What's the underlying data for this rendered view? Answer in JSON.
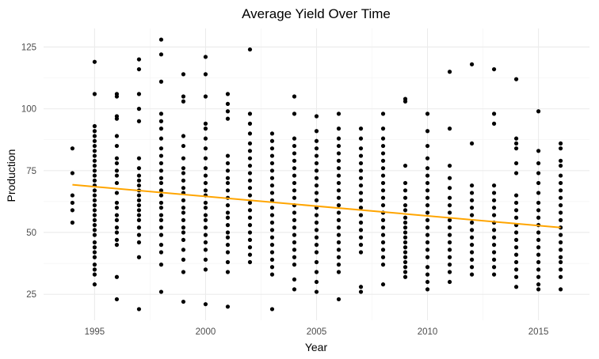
{
  "chart_data": {
    "type": "scatter",
    "title": "Average Yield Over Time",
    "xlabel": "Year",
    "ylabel": "Production",
    "xlim": [
      1992.7,
      2017.3
    ],
    "ylim": [
      14.5,
      132.5
    ],
    "x_ticks": [
      1995,
      2000,
      2005,
      2010,
      2015
    ],
    "y_ticks": [
      25,
      50,
      75,
      100,
      125
    ],
    "grid": true,
    "legend": "none",
    "colors": {
      "points": "#000000",
      "trend": "#FFA500",
      "grid": "#EBEBEB"
    },
    "trend_line": {
      "x": [
        1994,
        2016
      ],
      "y": [
        69.3,
        52.0
      ]
    },
    "series": [
      {
        "year": 1994,
        "values": [
          84,
          74,
          65,
          62,
          59,
          54
        ]
      },
      {
        "year": 1995,
        "values": [
          119,
          106,
          93,
          91,
          89,
          87,
          85,
          83,
          81,
          79,
          77,
          75,
          73,
          71,
          69,
          67,
          65,
          63,
          61,
          59,
          57,
          55,
          53,
          51,
          49,
          46,
          44,
          42,
          40,
          37,
          35,
          33,
          29
        ]
      },
      {
        "year": 1996,
        "values": [
          106,
          105,
          97,
          96,
          89,
          85,
          80,
          78,
          75,
          73,
          70,
          66,
          62,
          60,
          57,
          55,
          52,
          50,
          47,
          45,
          32,
          23
        ]
      },
      {
        "year": 1997,
        "values": [
          120,
          116,
          106,
          100,
          95,
          80,
          76,
          73,
          71,
          69,
          67,
          65,
          63,
          61,
          59,
          57,
          55,
          52,
          49,
          46,
          40,
          19
        ]
      },
      {
        "year": 1998,
        "values": [
          128,
          122,
          111,
          98,
          95,
          92,
          88,
          84,
          81,
          78,
          75,
          72,
          70,
          67,
          65,
          62,
          60,
          57,
          55,
          52,
          49,
          45,
          42,
          37,
          26
        ]
      },
      {
        "year": 1999,
        "values": [
          114,
          105,
          103,
          89,
          85,
          80,
          76,
          74,
          71,
          68,
          66,
          63,
          60,
          58,
          55,
          52,
          50,
          47,
          43,
          39,
          34,
          22
        ]
      },
      {
        "year": 2000,
        "values": [
          121,
          114,
          105,
          94,
          92,
          88,
          84,
          80,
          76,
          73,
          70,
          67,
          65,
          62,
          60,
          57,
          55,
          52,
          49,
          46,
          43,
          39,
          35,
          21
        ]
      },
      {
        "year": 2001,
        "values": [
          106,
          102,
          99,
          96,
          81,
          78,
          75,
          72,
          70,
          67,
          64,
          61,
          58,
          56,
          53,
          50,
          48,
          45,
          42,
          38,
          34,
          20
        ]
      },
      {
        "year": 2002,
        "values": [
          124,
          98,
          94,
          90,
          86,
          83,
          80,
          77,
          74,
          71,
          68,
          65,
          62,
          59,
          56,
          53,
          50,
          47,
          44,
          41,
          38
        ]
      },
      {
        "year": 2003,
        "values": [
          90,
          87,
          84,
          81,
          78,
          75,
          72,
          69,
          66,
          63,
          60,
          57,
          54,
          51,
          48,
          45,
          42,
          39,
          36,
          33,
          19
        ]
      },
      {
        "year": 2004,
        "values": [
          105,
          98,
          88,
          85,
          82,
          79,
          76,
          73,
          70,
          67,
          64,
          61,
          58,
          55,
          52,
          49,
          46,
          43,
          40,
          37,
          31,
          27
        ]
      },
      {
        "year": 2005,
        "values": [
          97,
          91,
          87,
          84,
          81,
          78,
          75,
          72,
          69,
          66,
          63,
          60,
          57,
          54,
          51,
          48,
          45,
          42,
          38,
          34,
          30,
          26
        ]
      },
      {
        "year": 2006,
        "values": [
          98,
          92,
          88,
          85,
          82,
          79,
          76,
          73,
          70,
          67,
          64,
          61,
          58,
          55,
          52,
          49,
          46,
          43,
          40,
          37,
          34,
          23
        ]
      },
      {
        "year": 2007,
        "values": [
          92,
          88,
          84,
          81,
          78,
          75,
          72,
          69,
          66,
          63,
          60,
          57,
          54,
          51,
          48,
          45,
          42,
          28,
          26
        ]
      },
      {
        "year": 2008,
        "values": [
          98,
          92,
          88,
          85,
          82,
          79,
          76,
          73,
          70,
          67,
          64,
          61,
          58,
          55,
          52,
          49,
          46,
          43,
          40,
          37,
          29
        ]
      },
      {
        "year": 2009,
        "values": [
          104,
          103,
          77,
          70,
          67,
          64,
          61,
          59,
          56,
          54,
          52,
          50,
          48,
          46,
          44,
          42,
          40,
          38,
          36,
          34,
          32
        ]
      },
      {
        "year": 2010,
        "values": [
          98,
          91,
          85,
          80,
          76,
          73,
          70,
          67,
          64,
          61,
          58,
          55,
          52,
          49,
          46,
          43,
          40,
          36,
          33,
          30,
          27
        ]
      },
      {
        "year": 2011,
        "values": [
          115,
          92,
          77,
          72,
          68,
          64,
          61,
          58,
          55,
          52,
          49,
          46,
          43,
          40,
          37,
          34,
          30
        ]
      },
      {
        "year": 2012,
        "values": [
          118,
          86,
          69,
          66,
          63,
          60,
          57,
          54,
          51,
          48,
          45,
          42,
          39,
          36,
          33
        ]
      },
      {
        "year": 2013,
        "values": [
          116,
          98,
          94,
          69,
          66,
          63,
          60,
          57,
          54,
          51,
          48,
          45,
          42,
          39,
          36,
          33
        ]
      },
      {
        "year": 2014,
        "values": [
          112,
          88,
          86,
          84,
          78,
          74,
          65,
          62,
          59,
          56,
          53,
          50,
          47,
          44,
          41,
          38,
          35,
          32,
          28
        ]
      },
      {
        "year": 2015,
        "values": [
          99,
          83,
          78,
          74,
          70,
          66,
          62,
          59,
          56,
          53,
          50,
          47,
          44,
          41,
          38,
          35,
          32,
          29,
          27
        ]
      },
      {
        "year": 2016,
        "values": [
          86,
          84,
          79,
          77,
          73,
          70,
          67,
          64,
          61,
          58,
          55,
          52,
          49,
          46,
          43,
          40,
          38,
          35,
          32,
          27
        ]
      }
    ]
  }
}
